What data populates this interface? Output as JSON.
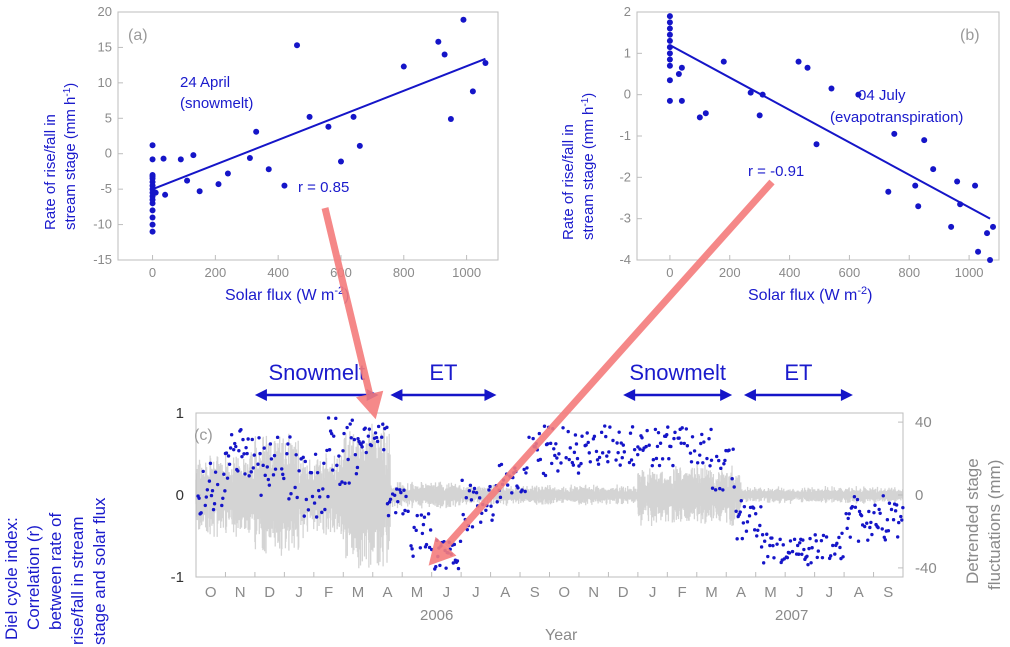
{
  "chart_data": [
    {
      "type": "scatter",
      "panel_label": "(a)",
      "annotation": [
        "24 April",
        "(snowmelt)"
      ],
      "r_label": "r = 0.85",
      "xlabel": "Solar flux (W m",
      "xlabel_sup": "-2",
      "xlabel_end": ")",
      "ylabel": [
        "Rate of rise/fall in",
        "stream stage (mm h",
        "-1",
        ")"
      ],
      "xlim": [
        -110,
        1100
      ],
      "ylim": [
        -15,
        20
      ],
      "xticks": [
        0,
        200,
        400,
        600,
        800,
        1000
      ],
      "yticks": [
        -15,
        -10,
        -5,
        0,
        5,
        10,
        15,
        20
      ],
      "points": [
        [
          0,
          1.2
        ],
        [
          0,
          -0.8
        ],
        [
          0,
          -3
        ],
        [
          0,
          -3.5
        ],
        [
          0,
          -4
        ],
        [
          0,
          -4.5
        ],
        [
          0,
          -5
        ],
        [
          0,
          -5.5
        ],
        [
          0,
          -6
        ],
        [
          0,
          -7
        ],
        [
          0,
          -8
        ],
        [
          0,
          -9
        ],
        [
          0,
          -10
        ],
        [
          0,
          -11
        ],
        [
          0,
          -3.2
        ],
        [
          0,
          -6.5
        ],
        [
          10,
          -5.5
        ],
        [
          35,
          -0.7
        ],
        [
          40,
          -5.8
        ],
        [
          90,
          -0.8
        ],
        [
          110,
          -3.8
        ],
        [
          130,
          -0.2
        ],
        [
          150,
          -5.3
        ],
        [
          210,
          -4.3
        ],
        [
          240,
          -2.8
        ],
        [
          310,
          -0.6
        ],
        [
          330,
          3.1
        ],
        [
          370,
          -2.2
        ],
        [
          420,
          -4.5
        ],
        [
          460,
          15.3
        ],
        [
          500,
          5.2
        ],
        [
          560,
          3.8
        ],
        [
          600,
          -1.1
        ],
        [
          640,
          5.2
        ],
        [
          660,
          1.1
        ],
        [
          800,
          12.3
        ],
        [
          910,
          15.8
        ],
        [
          930,
          14
        ],
        [
          950,
          4.9
        ],
        [
          990,
          18.9
        ],
        [
          1020,
          8.8
        ],
        [
          1060,
          12.8
        ]
      ],
      "fit": [
        [
          0,
          -5
        ],
        [
          1060,
          13.4
        ]
      ]
    },
    {
      "type": "scatter",
      "panel_label": "(b)",
      "annotation": [
        "04 July",
        "(evapotranspiration)"
      ],
      "r_label": "r = -0.91",
      "xlabel": "Solar flux (W m",
      "xlabel_sup": "-2",
      "xlabel_end": ")",
      "ylabel": [
        "Rate of rise/fall in",
        "stream stage (mm h",
        "-1",
        ")"
      ],
      "xlim": [
        -110,
        1100
      ],
      "ylim": [
        -4,
        2
      ],
      "xticks": [
        0,
        200,
        400,
        600,
        800,
        1000
      ],
      "yticks": [
        -4,
        -3,
        -2,
        -1,
        0,
        1,
        2
      ],
      "points": [
        [
          0,
          1.9
        ],
        [
          0,
          1.75
        ],
        [
          0,
          1.6
        ],
        [
          0,
          1.45
        ],
        [
          0,
          1.3
        ],
        [
          0,
          1.15
        ],
        [
          0,
          1.0
        ],
        [
          0,
          0.85
        ],
        [
          0,
          0.7
        ],
        [
          0,
          0.35
        ],
        [
          0,
          -0.15
        ],
        [
          30,
          0.5
        ],
        [
          40,
          0.65
        ],
        [
          40,
          -0.15
        ],
        [
          180,
          0.8
        ],
        [
          100,
          -0.55
        ],
        [
          120,
          -0.45
        ],
        [
          270,
          0.05
        ],
        [
          300,
          -0.5
        ],
        [
          310,
          0
        ],
        [
          430,
          0.8
        ],
        [
          460,
          0.65
        ],
        [
          490,
          -1.2
        ],
        [
          540,
          0.15
        ],
        [
          630,
          0
        ],
        [
          730,
          -2.35
        ],
        [
          750,
          -0.95
        ],
        [
          820,
          -2.2
        ],
        [
          830,
          -2.7
        ],
        [
          850,
          -1.1
        ],
        [
          880,
          -1.8
        ],
        [
          940,
          -3.2
        ],
        [
          960,
          -2.1
        ],
        [
          970,
          -2.65
        ],
        [
          1020,
          -2.2
        ],
        [
          1030,
          -3.8
        ],
        [
          1060,
          -3.35
        ],
        [
          1070,
          -4
        ],
        [
          1080,
          -3.2
        ]
      ],
      "fit": [
        [
          0,
          1.2
        ],
        [
          1070,
          -3.0
        ]
      ]
    },
    {
      "type": "scatter",
      "panel_label": "(c)",
      "ylabel_left": [
        "Diel cycle index:",
        "Correlation (r)",
        "between rate of",
        "rise/fall in stream",
        "stage and solar flux"
      ],
      "ylabel_right": [
        "Detrended stage",
        "fluctuations (mm)"
      ],
      "xlabel": "Year",
      "months": [
        "O",
        "N",
        "D",
        "J",
        "F",
        "M",
        "A",
        "M",
        "J",
        "J",
        "A",
        "S",
        "O",
        "N",
        "D",
        "J",
        "F",
        "M",
        "A",
        "M",
        "J",
        "J",
        "A",
        "S"
      ],
      "years": [
        "2006",
        "2007"
      ],
      "left_ylim": [
        -1,
        1
      ],
      "left_yticks": [
        -1,
        0,
        1
      ],
      "right_ylim": [
        -45,
        45
      ],
      "right_yticks": [
        -40,
        0,
        40
      ],
      "periods": [
        {
          "label": "Snowmelt",
          "start_month": 2,
          "end_month": 6.2
        },
        {
          "label": "ET",
          "start_month": 6.6,
          "end_month": 10.2
        },
        {
          "label": "Snowmelt",
          "start_month": 14.5,
          "end_month": 18.2
        },
        {
          "label": "ET",
          "start_month": 18.6,
          "end_month": 22.3
        }
      ],
      "highlights": [
        {
          "from_panel": "(a)",
          "to_month": 6.1,
          "to_r": 0.85
        },
        {
          "from_panel": "(b)",
          "to_month": 8.1,
          "to_r": -0.91
        }
      ],
      "index_segments": [
        {
          "from": 0.0,
          "to": 1.0,
          "range": [
            -0.35,
            0.4
          ]
        },
        {
          "from": 1.0,
          "to": 2.0,
          "range": [
            0.2,
            0.85
          ]
        },
        {
          "from": 2.0,
          "to": 3.5,
          "range": [
            -0.1,
            0.75
          ]
        },
        {
          "from": 3.5,
          "to": 4.5,
          "range": [
            -0.3,
            0.6
          ]
        },
        {
          "from": 4.5,
          "to": 5.5,
          "range": [
            0.1,
            0.95
          ]
        },
        {
          "from": 5.5,
          "to": 6.5,
          "range": [
            0.5,
            0.9
          ]
        },
        {
          "from": 6.5,
          "to": 7.3,
          "range": [
            -0.3,
            0.1
          ]
        },
        {
          "from": 7.3,
          "to": 8.0,
          "range": [
            -0.8,
            -0.2
          ]
        },
        {
          "from": 8.0,
          "to": 9.0,
          "range": [
            -0.92,
            -0.55
          ]
        },
        {
          "from": 9.0,
          "to": 10.3,
          "range": [
            -0.55,
            0.2
          ]
        },
        {
          "from": 10.3,
          "to": 11.2,
          "range": [
            -0.1,
            0.45
          ]
        },
        {
          "from": 11.2,
          "to": 13.0,
          "range": [
            0.2,
            0.85
          ]
        },
        {
          "from": 13.0,
          "to": 15.0,
          "range": [
            0.35,
            0.85
          ]
        },
        {
          "from": 15.0,
          "to": 17.5,
          "range": [
            0.35,
            0.85
          ]
        },
        {
          "from": 17.5,
          "to": 18.3,
          "range": [
            0.0,
            0.6
          ]
        },
        {
          "from": 18.3,
          "to": 19.2,
          "range": [
            -0.55,
            -0.05
          ]
        },
        {
          "from": 19.2,
          "to": 22.0,
          "range": [
            -0.85,
            -0.45
          ]
        },
        {
          "from": 22.0,
          "to": 24.0,
          "range": [
            -0.6,
            0.0
          ]
        }
      ],
      "fluct_amplitude": [
        {
          "from": 0.0,
          "to": 2.0,
          "amp": 25
        },
        {
          "from": 2.0,
          "to": 3.5,
          "amp": 40
        },
        {
          "from": 3.5,
          "to": 5.0,
          "amp": 25
        },
        {
          "from": 5.0,
          "to": 6.6,
          "amp": 45
        },
        {
          "from": 6.6,
          "to": 9.0,
          "amp": 8
        },
        {
          "from": 9.0,
          "to": 12.0,
          "amp": 6
        },
        {
          "from": 12.0,
          "to": 15.0,
          "amp": 6
        },
        {
          "from": 15.0,
          "to": 18.5,
          "amp": 18
        },
        {
          "from": 18.5,
          "to": 24.0,
          "amp": 5
        }
      ]
    }
  ]
}
